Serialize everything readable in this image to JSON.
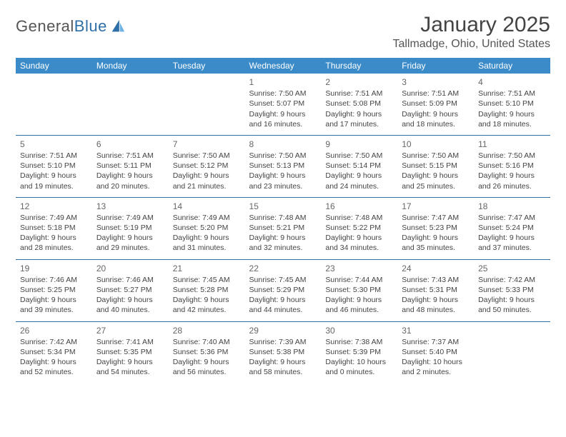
{
  "logo": {
    "word1": "General",
    "word2": "Blue"
  },
  "title": "January 2025",
  "location": "Tallmadge, Ohio, United States",
  "header_bg": "#3b8bc9",
  "row_border": "#2f6fa8",
  "day_headers": [
    "Sunday",
    "Monday",
    "Tuesday",
    "Wednesday",
    "Thursday",
    "Friday",
    "Saturday"
  ],
  "weeks": [
    [
      null,
      null,
      null,
      {
        "n": "1",
        "sr": "7:50 AM",
        "ss": "5:07 PM",
        "dl": "9 hours and 16 minutes."
      },
      {
        "n": "2",
        "sr": "7:51 AM",
        "ss": "5:08 PM",
        "dl": "9 hours and 17 minutes."
      },
      {
        "n": "3",
        "sr": "7:51 AM",
        "ss": "5:09 PM",
        "dl": "9 hours and 18 minutes."
      },
      {
        "n": "4",
        "sr": "7:51 AM",
        "ss": "5:10 PM",
        "dl": "9 hours and 18 minutes."
      }
    ],
    [
      {
        "n": "5",
        "sr": "7:51 AM",
        "ss": "5:10 PM",
        "dl": "9 hours and 19 minutes."
      },
      {
        "n": "6",
        "sr": "7:51 AM",
        "ss": "5:11 PM",
        "dl": "9 hours and 20 minutes."
      },
      {
        "n": "7",
        "sr": "7:50 AM",
        "ss": "5:12 PM",
        "dl": "9 hours and 21 minutes."
      },
      {
        "n": "8",
        "sr": "7:50 AM",
        "ss": "5:13 PM",
        "dl": "9 hours and 23 minutes."
      },
      {
        "n": "9",
        "sr": "7:50 AM",
        "ss": "5:14 PM",
        "dl": "9 hours and 24 minutes."
      },
      {
        "n": "10",
        "sr": "7:50 AM",
        "ss": "5:15 PM",
        "dl": "9 hours and 25 minutes."
      },
      {
        "n": "11",
        "sr": "7:50 AM",
        "ss": "5:16 PM",
        "dl": "9 hours and 26 minutes."
      }
    ],
    [
      {
        "n": "12",
        "sr": "7:49 AM",
        "ss": "5:18 PM",
        "dl": "9 hours and 28 minutes."
      },
      {
        "n": "13",
        "sr": "7:49 AM",
        "ss": "5:19 PM",
        "dl": "9 hours and 29 minutes."
      },
      {
        "n": "14",
        "sr": "7:49 AM",
        "ss": "5:20 PM",
        "dl": "9 hours and 31 minutes."
      },
      {
        "n": "15",
        "sr": "7:48 AM",
        "ss": "5:21 PM",
        "dl": "9 hours and 32 minutes."
      },
      {
        "n": "16",
        "sr": "7:48 AM",
        "ss": "5:22 PM",
        "dl": "9 hours and 34 minutes."
      },
      {
        "n": "17",
        "sr": "7:47 AM",
        "ss": "5:23 PM",
        "dl": "9 hours and 35 minutes."
      },
      {
        "n": "18",
        "sr": "7:47 AM",
        "ss": "5:24 PM",
        "dl": "9 hours and 37 minutes."
      }
    ],
    [
      {
        "n": "19",
        "sr": "7:46 AM",
        "ss": "5:25 PM",
        "dl": "9 hours and 39 minutes."
      },
      {
        "n": "20",
        "sr": "7:46 AM",
        "ss": "5:27 PM",
        "dl": "9 hours and 40 minutes."
      },
      {
        "n": "21",
        "sr": "7:45 AM",
        "ss": "5:28 PM",
        "dl": "9 hours and 42 minutes."
      },
      {
        "n": "22",
        "sr": "7:45 AM",
        "ss": "5:29 PM",
        "dl": "9 hours and 44 minutes."
      },
      {
        "n": "23",
        "sr": "7:44 AM",
        "ss": "5:30 PM",
        "dl": "9 hours and 46 minutes."
      },
      {
        "n": "24",
        "sr": "7:43 AM",
        "ss": "5:31 PM",
        "dl": "9 hours and 48 minutes."
      },
      {
        "n": "25",
        "sr": "7:42 AM",
        "ss": "5:33 PM",
        "dl": "9 hours and 50 minutes."
      }
    ],
    [
      {
        "n": "26",
        "sr": "7:42 AM",
        "ss": "5:34 PM",
        "dl": "9 hours and 52 minutes."
      },
      {
        "n": "27",
        "sr": "7:41 AM",
        "ss": "5:35 PM",
        "dl": "9 hours and 54 minutes."
      },
      {
        "n": "28",
        "sr": "7:40 AM",
        "ss": "5:36 PM",
        "dl": "9 hours and 56 minutes."
      },
      {
        "n": "29",
        "sr": "7:39 AM",
        "ss": "5:38 PM",
        "dl": "9 hours and 58 minutes."
      },
      {
        "n": "30",
        "sr": "7:38 AM",
        "ss": "5:39 PM",
        "dl": "10 hours and 0 minutes."
      },
      {
        "n": "31",
        "sr": "7:37 AM",
        "ss": "5:40 PM",
        "dl": "10 hours and 2 minutes."
      },
      null
    ]
  ],
  "labels": {
    "sunrise": "Sunrise: ",
    "sunset": "Sunset: ",
    "daylight": "Daylight: "
  }
}
